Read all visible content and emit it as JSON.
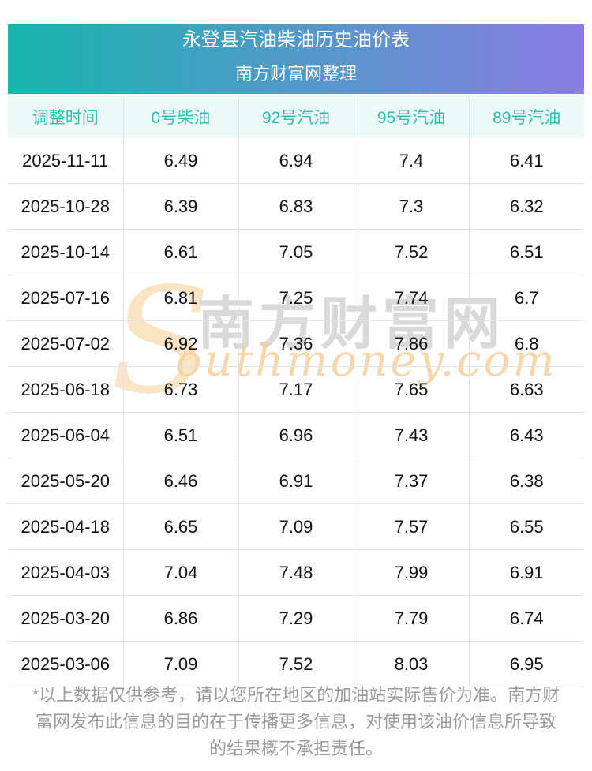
{
  "page": {
    "banner": {
      "title": "永登县汽油柴油历史油价表",
      "subtitle": "南方财富网整理",
      "gradient_start": "#18b5ae",
      "gradient_end": "#8b7de3",
      "text_color": "#ffffff"
    },
    "watermark": {
      "swoosh_glyph": "S",
      "cn_text": "南方财富网",
      "latin_text": "outhmoney.com",
      "cn_color": "#d3d3d3",
      "latin_color": "#f6ce96",
      "swoosh_color": "#fbe2bd"
    },
    "table_style": {
      "header_bg": "#ecfaf7",
      "header_text_color": "#2bbfb3",
      "grid_color": "#dee3ed"
    },
    "footer": {
      "disclaimer": "*以上数据仅供参考，请以您所在地区的加油站实际售价为准。南方财富网发布此信息的目的在于传播更多信息，对使用该油价信息所导致的结果概不承担责任。"
    }
  },
  "chart_data": {
    "type": "table",
    "title": "永登县汽油柴油历史油价表",
    "subtitle": "南方财富网整理",
    "columns": [
      "调整时间",
      "0号柴油",
      "92号汽油",
      "95号汽油",
      "89号汽油"
    ],
    "rows": [
      [
        "2025-11-11",
        "6.49",
        "6.94",
        "7.4",
        "6.41"
      ],
      [
        "2025-10-28",
        "6.39",
        "6.83",
        "7.3",
        "6.32"
      ],
      [
        "2025-10-14",
        "6.61",
        "7.05",
        "7.52",
        "6.51"
      ],
      [
        "2025-07-16",
        "6.81",
        "7.25",
        "7.74",
        "6.7"
      ],
      [
        "2025-07-02",
        "6.92",
        "7.36",
        "7.86",
        "6.8"
      ],
      [
        "2025-06-18",
        "6.73",
        "7.17",
        "7.65",
        "6.63"
      ],
      [
        "2025-06-04",
        "6.51",
        "6.96",
        "7.43",
        "6.43"
      ],
      [
        "2025-05-20",
        "6.46",
        "6.91",
        "7.37",
        "6.38"
      ],
      [
        "2025-04-18",
        "6.65",
        "7.09",
        "7.57",
        "6.55"
      ],
      [
        "2025-04-03",
        "7.04",
        "7.48",
        "7.99",
        "6.91"
      ],
      [
        "2025-03-20",
        "6.86",
        "7.29",
        "7.79",
        "6.74"
      ],
      [
        "2025-03-06",
        "7.09",
        "7.52",
        "8.03",
        "6.95"
      ]
    ]
  }
}
